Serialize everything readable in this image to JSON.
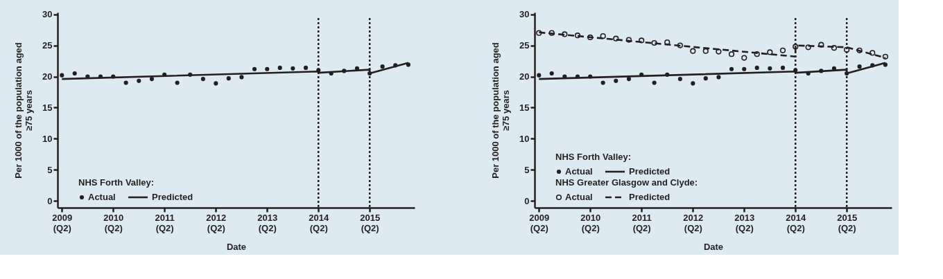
{
  "chart_data": [
    {
      "type": "scatter",
      "xlabel": "Date",
      "ylabel": "Per 1000 of the population aged ≥75 years",
      "x": [
        "2009-04",
        "2009-07",
        "2009-10",
        "2010-01",
        "2010-04",
        "2010-07",
        "2010-10",
        "2011-01",
        "2011-04",
        "2011-07",
        "2011-10",
        "2012-01",
        "2012-04",
        "2012-07",
        "2012-10",
        "2013-01",
        "2013-04",
        "2013-07",
        "2013-10",
        "2014-01",
        "2014-04",
        "2014-07",
        "2014-10",
        "2015-01",
        "2015-04",
        "2015-07",
        "2015-10",
        "2016-01"
      ],
      "series": [
        {
          "name": "Actual",
          "type": "scatter",
          "marker": "circle",
          "color": "#231f20",
          "values": [
            20.2,
            20.5,
            20.0,
            20.0,
            20.0,
            19.0,
            19.3,
            19.6,
            20.3,
            19.0,
            20.3,
            19.6,
            18.9,
            19.7,
            19.9,
            21.2,
            21.2,
            21.4,
            21.3,
            21.4,
            21.0,
            20.5,
            20.9,
            21.3,
            20.5,
            21.6,
            21.8,
            21.9
          ]
        },
        {
          "name": "Predicted",
          "type": "line",
          "line_style": "solid",
          "color": "#231f20",
          "x": [
            "2009-04",
            "2014-04",
            "2014-04",
            "2015-04",
            "2015-04",
            "2016-01"
          ],
          "values": [
            19.6,
            20.8,
            20.6,
            21.1,
            20.5,
            22.2
          ]
        }
      ],
      "annotations": [
        "NHS Forth Valley:"
      ],
      "legend": "bottom left",
      "grid": false,
      "xlim": [
        "2009-03-01",
        "2016-02-15"
      ],
      "xticks": [
        {
          "value": "2009-04",
          "label": "2009 (Q2)"
        },
        {
          "value": "2010-04",
          "label": "2010 (Q2)"
        },
        {
          "value": "2011-04",
          "label": "2011 (Q2)"
        },
        {
          "value": "2012-04",
          "label": "2012 (Q2)"
        },
        {
          "value": "2013-04",
          "label": "2013 (Q2)"
        },
        {
          "value": "2014-04",
          "label": "2014 (Q2)"
        },
        {
          "value": "2015-04",
          "label": "2015 (Q2)"
        }
      ],
      "ylim": [
        -1.1,
        30.3
      ],
      "yticks": [
        0,
        5,
        10,
        15,
        20,
        25,
        30
      ],
      "ref_lines": [
        {
          "axis": "x",
          "value": "2014-04",
          "line_style": "dotted",
          "color": "#231f20"
        },
        {
          "axis": "x",
          "value": "2015-04",
          "line_style": "dotted",
          "color": "#231f20"
        }
      ]
    },
    {
      "type": "scatter",
      "xlabel": "Date",
      "ylabel": "Per 1000 of the population aged ≥75 years",
      "x": [
        "2009-04",
        "2009-07",
        "2009-10",
        "2010-01",
        "2010-04",
        "2010-07",
        "2010-10",
        "2011-01",
        "2011-04",
        "2011-07",
        "2011-10",
        "2012-01",
        "2012-04",
        "2012-07",
        "2012-10",
        "2013-01",
        "2013-04",
        "2013-07",
        "2013-10",
        "2014-01",
        "2014-04",
        "2014-07",
        "2014-10",
        "2015-01",
        "2015-04",
        "2015-07",
        "2015-10",
        "2016-01"
      ],
      "series": [
        {
          "name": "Actual",
          "type": "scatter",
          "marker": "circle",
          "color": "#231f20",
          "values": [
            20.2,
            20.5,
            20.0,
            20.0,
            20.0,
            19.0,
            19.3,
            19.6,
            20.3,
            19.0,
            20.3,
            19.6,
            18.9,
            19.7,
            19.9,
            21.2,
            21.2,
            21.4,
            21.3,
            21.4,
            21.0,
            20.5,
            20.9,
            21.3,
            20.5,
            21.6,
            21.8,
            21.9
          ]
        },
        {
          "name": "Predicted",
          "type": "line",
          "line_style": "solid",
          "color": "#231f20",
          "x": [
            "2009-04",
            "2014-04",
            "2014-04",
            "2015-04",
            "2015-04",
            "2016-01"
          ],
          "values": [
            19.6,
            20.8,
            20.6,
            21.1,
            20.5,
            22.2
          ]
        },
        {
          "name": "Actual",
          "type": "scatter",
          "marker": "circle",
          "color": "#231f20",
          "values": [
            27.0,
            27.0,
            26.8,
            26.6,
            26.3,
            26.5,
            26.1,
            25.9,
            25.8,
            25.4,
            25.5,
            25.0,
            24.1,
            24.1,
            24.0,
            23.6,
            23.0,
            23.6,
            23.9,
            24.2,
            24.8,
            24.7,
            25.1,
            24.6,
            24.3,
            24.2,
            23.8,
            23.2
          ]
        },
        {
          "name": "Predicted",
          "type": "line",
          "line_style": "dashed",
          "color": "#231f20",
          "x": [
            "2009-04",
            "2014-04",
            "2014-04",
            "2015-04",
            "2015-04",
            "2016-01"
          ],
          "values": [
            27.1,
            23.2,
            25.0,
            24.7,
            24.7,
            23.0
          ]
        }
      ],
      "annotations": [
        "NHS Forth Valley:",
        "NHS Greater Glasgow and Clyde:"
      ],
      "legend": "bottom left",
      "grid": false,
      "xlim": [
        "2009-03-01",
        "2016-02-15"
      ],
      "xticks": [
        {
          "value": "2009-04",
          "label": "2009 (Q2)"
        },
        {
          "value": "2010-04",
          "label": "2010 (Q2)"
        },
        {
          "value": "2011-04",
          "label": "2011 (Q2)"
        },
        {
          "value": "2012-04",
          "label": "2012 (Q2)"
        },
        {
          "value": "2013-04",
          "label": "2013 (Q2)"
        },
        {
          "value": "2014-04",
          "label": "2014 (Q2)"
        },
        {
          "value": "2015-04",
          "label": "2015 (Q2)"
        }
      ],
      "ylim": [
        -1.1,
        30.3
      ],
      "yticks": [
        0,
        5,
        10,
        15,
        20,
        25,
        30
      ],
      "ref_lines": [
        {
          "axis": "x",
          "value": "2014-04",
          "line_style": "dotted",
          "color": "#231f20"
        },
        {
          "axis": "x",
          "value": "2015-04",
          "line_style": "dotted",
          "color": "#231f20"
        }
      ]
    }
  ]
}
